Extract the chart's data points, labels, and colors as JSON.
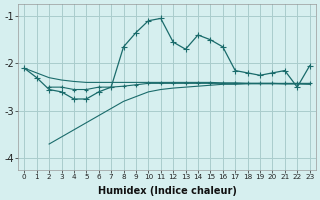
{
  "xlabel": "Humidex (Indice chaleur)",
  "bg_color": "#d6efef",
  "grid_color": "#aacccc",
  "line_color": "#1a6b6b",
  "xlim": [
    -0.5,
    23.5
  ],
  "ylim": [
    -4.25,
    -0.75
  ],
  "yticks": [
    -4,
    -3,
    -2,
    -1
  ],
  "xticks": [
    0,
    1,
    2,
    3,
    4,
    5,
    6,
    7,
    8,
    9,
    10,
    11,
    12,
    13,
    14,
    15,
    16,
    17,
    18,
    19,
    20,
    21,
    22,
    23
  ],
  "line1_x": [
    0,
    1,
    2,
    3,
    4,
    5,
    6,
    7,
    8,
    9,
    10,
    11,
    12,
    13,
    14,
    15,
    16,
    17,
    18,
    19,
    20,
    21,
    22,
    23
  ],
  "line1_y": [
    -2.1,
    -2.3,
    -2.55,
    -2.6,
    -2.75,
    -2.75,
    -2.6,
    -2.5,
    -1.65,
    -1.35,
    -1.1,
    -1.05,
    -1.55,
    -1.7,
    -1.4,
    -1.5,
    -1.65,
    -2.15,
    -2.2,
    -2.25,
    -2.2,
    -2.15,
    -2.5,
    -2.05
  ],
  "line2_x": [
    2,
    3,
    4,
    5,
    6,
    7,
    8,
    9,
    10,
    11,
    12,
    13,
    14,
    15,
    16,
    17,
    18,
    19,
    20,
    21,
    22,
    23
  ],
  "line2_y": [
    -2.5,
    -2.5,
    -2.55,
    -2.55,
    -2.5,
    -2.5,
    -2.48,
    -2.45,
    -2.42,
    -2.42,
    -2.42,
    -2.42,
    -2.42,
    -2.42,
    -2.42,
    -2.42,
    -2.42,
    -2.42,
    -2.42,
    -2.42,
    -2.42,
    -2.42
  ],
  "line3_x": [
    0,
    1,
    2,
    3,
    4,
    5,
    6,
    7,
    8,
    9,
    10,
    11,
    12,
    13,
    14,
    15,
    16,
    17,
    18,
    19,
    20,
    21,
    22,
    23
  ],
  "line3_y": [
    -2.1,
    -2.2,
    -2.3,
    -2.35,
    -2.38,
    -2.4,
    -2.4,
    -2.4,
    -2.4,
    -2.4,
    -2.4,
    -2.4,
    -2.4,
    -2.4,
    -2.4,
    -2.4,
    -2.41,
    -2.41,
    -2.42,
    -2.42,
    -2.42,
    -2.43,
    -2.43,
    -2.44
  ],
  "line4_x": [
    2,
    3,
    4,
    5,
    6,
    7,
    8,
    9,
    10,
    11,
    12,
    13,
    14,
    15,
    16,
    17,
    18,
    19,
    20,
    21,
    22,
    23
  ],
  "line4_y": [
    -3.7,
    -3.55,
    -3.4,
    -3.25,
    -3.1,
    -2.95,
    -2.8,
    -2.7,
    -2.6,
    -2.55,
    -2.52,
    -2.5,
    -2.48,
    -2.46,
    -2.44,
    -2.44,
    -2.43,
    -2.43,
    -2.43,
    -2.43,
    -2.43,
    -2.43
  ]
}
